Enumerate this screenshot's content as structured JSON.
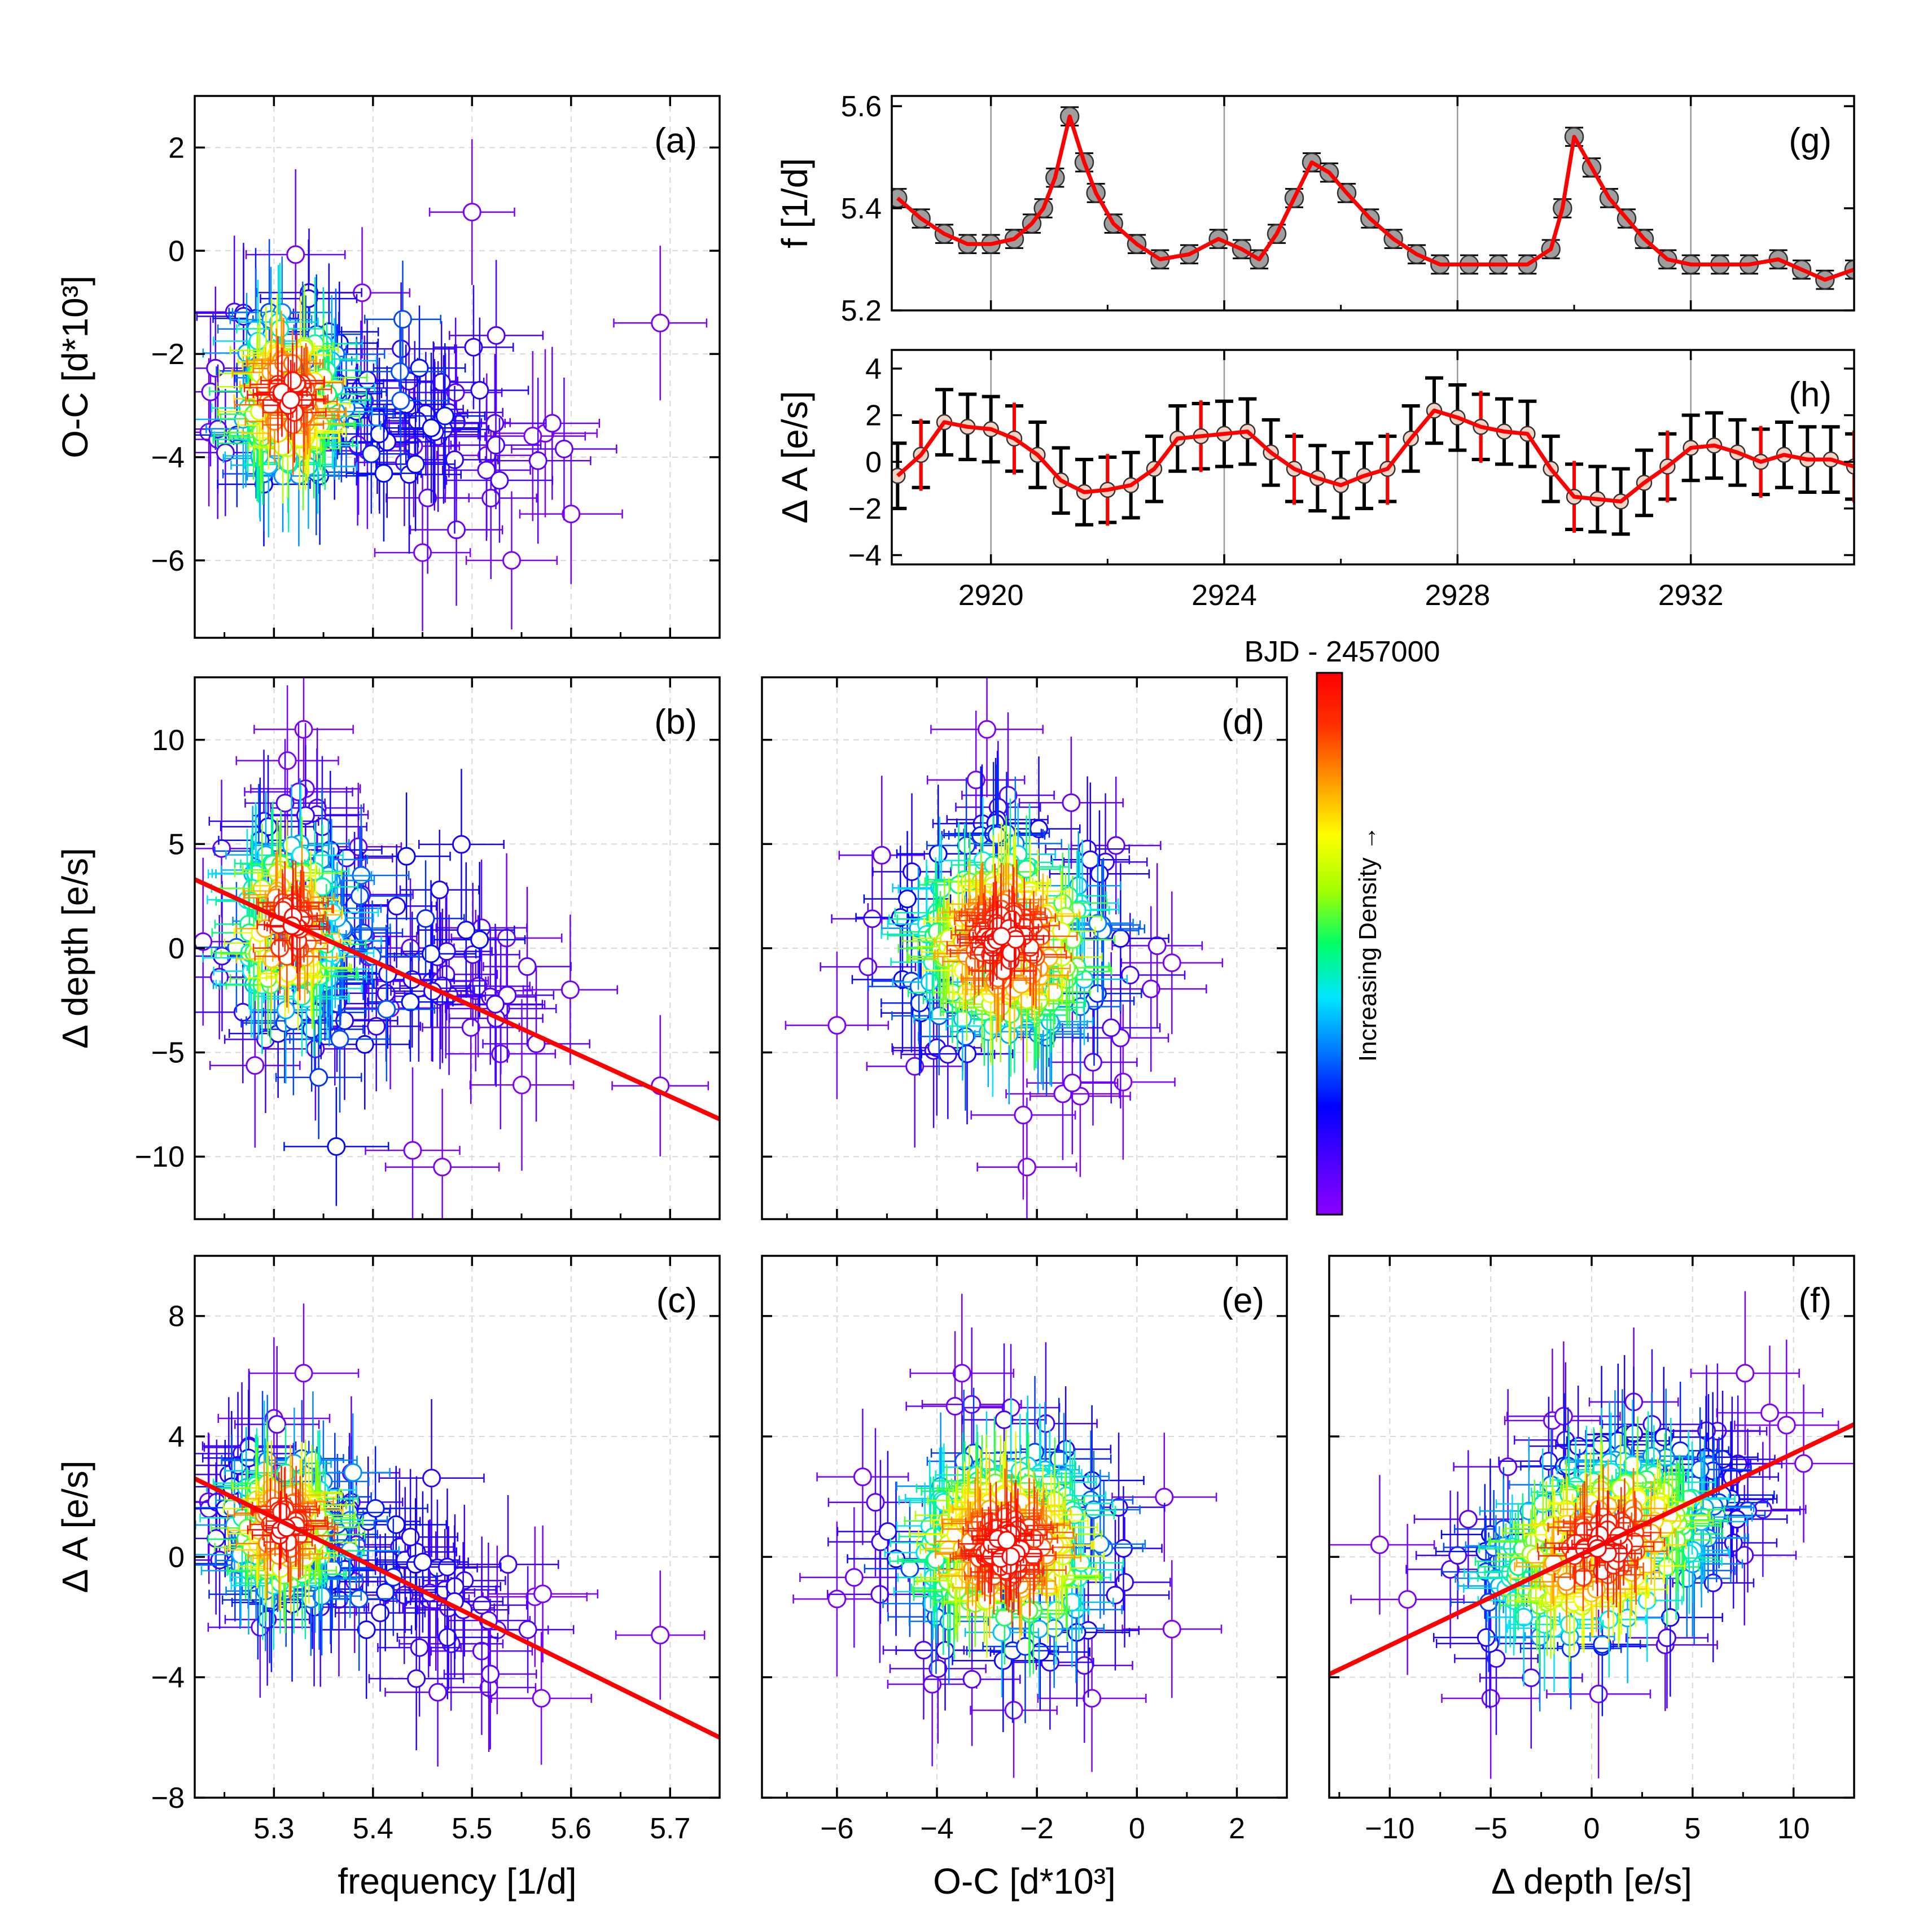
{
  "figure": {
    "colorbar": {
      "title": "BJD - 2457000",
      "label": "Increasing Density →",
      "colors": [
        "#8b00ff",
        "#4b00ff",
        "#0000ff",
        "#0077ff",
        "#00e5ff",
        "#00ff66",
        "#a6ff00",
        "#ffff00",
        "#ff9900",
        "#ff3300",
        "#ff0000"
      ]
    },
    "fit_color": "#ff0000",
    "marker_fill": "#ffffff"
  },
  "chart_data": [
    {
      "id": "a",
      "type": "scatter",
      "panel_label": "(a)",
      "xlabel": "",
      "ylabel": "O-C [d*10³]",
      "xlim": [
        5.22,
        5.75
      ],
      "ylim": [
        -7.5,
        3
      ],
      "xticks": [
        5.3,
        5.4,
        5.5,
        5.6,
        5.7
      ],
      "yticks": [
        -6,
        -4,
        -2,
        0,
        2
      ],
      "show_xticklabels": false,
      "cloud": {
        "cx": 5.315,
        "cy": -2.8,
        "sx": 0.032,
        "sy": 1.0,
        "n": 130,
        "seed": 11,
        "tail": {
          "dx": 0.22,
          "dy": -0.8,
          "n": 70
        }
      },
      "outliers": [
        {
          "x": 5.69,
          "y": -1.4
        },
        {
          "x": 5.5,
          "y": 0.75
        },
        {
          "x": 5.54,
          "y": -6.0
        },
        {
          "x": 5.6,
          "y": -5.1
        },
        {
          "x": 5.45,
          "y": -5.85
        }
      ]
    },
    {
      "id": "b",
      "type": "scatter",
      "panel_label": "(b)",
      "xlabel": "",
      "ylabel": "Δ depth [e/s]",
      "xlim": [
        5.22,
        5.75
      ],
      "ylim": [
        -13,
        13
      ],
      "xticks": [
        5.3,
        5.4,
        5.5,
        5.6,
        5.7
      ],
      "yticks": [
        -10,
        -5,
        0,
        5,
        10
      ],
      "show_xticklabels": false,
      "fit": {
        "x": [
          5.22,
          5.75
        ],
        "y": [
          3.3,
          -8.2
        ]
      },
      "cloud": {
        "cx": 5.315,
        "cy": 1.0,
        "sx": 0.032,
        "sy": 2.6,
        "n": 130,
        "seed": 23,
        "tail": {
          "dx": 0.22,
          "dy": -4.5,
          "n": 70
        }
      },
      "outliers": [
        {
          "x": 5.69,
          "y": -6.6
        },
        {
          "x": 5.33,
          "y": 10.5
        },
        {
          "x": 5.47,
          "y": -10.5
        },
        {
          "x": 5.44,
          "y": -9.7
        }
      ]
    },
    {
      "id": "c",
      "type": "scatter",
      "panel_label": "(c)",
      "xlabel": "frequency [1/d]",
      "ylabel": "Δ A [e/s]",
      "xlim": [
        5.22,
        5.75
      ],
      "ylim": [
        -8,
        10
      ],
      "xticks": [
        5.3,
        5.4,
        5.5,
        5.6,
        5.7
      ],
      "yticks": [
        -8,
        -4,
        0,
        4,
        8
      ],
      "xtick_labels": [
        "5.3",
        "5.4",
        "5.5",
        "5.6",
        "5.7"
      ],
      "fit": {
        "x": [
          5.22,
          5.75
        ],
        "y": [
          2.6,
          -6.0
        ]
      },
      "cloud": {
        "cx": 5.31,
        "cy": 1.0,
        "sx": 0.032,
        "sy": 1.4,
        "n": 130,
        "seed": 37,
        "tail": {
          "dx": 0.22,
          "dy": -3.8,
          "n": 70
        }
      },
      "outliers": [
        {
          "x": 5.69,
          "y": -2.6
        },
        {
          "x": 5.33,
          "y": 6.1
        },
        {
          "x": 5.3,
          "y": 4.6
        },
        {
          "x": 5.57,
          "y": -4.7
        }
      ]
    },
    {
      "id": "d",
      "type": "scatter",
      "panel_label": "(d)",
      "xlabel": "",
      "ylabel": "",
      "xlim": [
        -7.5,
        3
      ],
      "ylim": [
        -13,
        13
      ],
      "xticks": [
        -6,
        -4,
        -2,
        0,
        2
      ],
      "yticks": [
        -10,
        -5,
        0,
        5,
        10
      ],
      "show_xticklabels": false,
      "show_yticklabels": false,
      "cloud": {
        "cx": -2.6,
        "cy": 0.3,
        "sx": 1.15,
        "sy": 2.9,
        "n": 220,
        "seed": 41
      },
      "outliers": [
        {
          "x": -3.0,
          "y": 10.5
        },
        {
          "x": -2.2,
          "y": -10.5
        },
        {
          "x": -6.0,
          "y": -3.7
        },
        {
          "x": 0.7,
          "y": -0.7
        }
      ]
    },
    {
      "id": "e",
      "type": "scatter",
      "panel_label": "(e)",
      "xlabel": "O-C [d*10³]",
      "ylabel": "",
      "xlim": [
        -7.5,
        3
      ],
      "ylim": [
        -8,
        10
      ],
      "xticks": [
        -6,
        -4,
        -2,
        0,
        2
      ],
      "yticks": [
        -8,
        -4,
        0,
        4,
        8
      ],
      "xtick_labels": [
        "−6",
        "−4",
        "−2",
        "0",
        "2"
      ],
      "show_yticklabels": false,
      "cloud": {
        "cx": -2.6,
        "cy": 0.3,
        "sx": 1.15,
        "sy": 1.9,
        "n": 220,
        "seed": 53
      },
      "outliers": [
        {
          "x": -3.5,
          "y": 6.1
        },
        {
          "x": -6.0,
          "y": -1.4
        },
        {
          "x": 0.7,
          "y": -2.4
        },
        {
          "x": -0.9,
          "y": -4.7
        }
      ]
    },
    {
      "id": "f",
      "type": "scatter",
      "panel_label": "(f)",
      "xlabel": "Δ depth [e/s]",
      "ylabel": "",
      "xlim": [
        -13,
        13
      ],
      "ylim": [
        -8,
        10
      ],
      "xticks": [
        -10,
        -5,
        0,
        5,
        10
      ],
      "yticks": [
        -8,
        -4,
        0,
        4,
        8
      ],
      "xtick_labels": [
        "−10",
        "−5",
        "0",
        "5",
        "10"
      ],
      "show_yticklabels": false,
      "fit": {
        "x": [
          -13,
          13
        ],
        "y": [
          -3.9,
          4.4
        ]
      },
      "cloud": {
        "cx": 0.5,
        "cy": 0.3,
        "sx": 3.3,
        "sy": 1.9,
        "n": 220,
        "seed": 67,
        "corr": 0.35
      },
      "outliers": [
        {
          "x": 10.5,
          "y": 3.1
        },
        {
          "x": -10.5,
          "y": 0.4
        },
        {
          "x": 7.6,
          "y": 6.1
        },
        {
          "x": -5.0,
          "y": -4.7
        }
      ]
    },
    {
      "id": "g",
      "type": "line",
      "panel_label": "(g)",
      "xlabel": "",
      "ylabel": "f [1/d]",
      "xlim": [
        2918.3,
        2934.8
      ],
      "ylim": [
        5.2,
        5.62
      ],
      "xticks": [
        2920,
        2924,
        2928,
        2932
      ],
      "yticks": [
        5.2,
        5.4,
        5.6
      ],
      "ytick_labels": [
        "5.2",
        "5.4",
        "5.6"
      ],
      "show_xticklabels": false,
      "x": [
        2918.4,
        2918.8,
        2919.2,
        2919.6,
        2920.0,
        2920.4,
        2920.7,
        2920.9,
        2921.1,
        2921.35,
        2921.6,
        2921.8,
        2922.1,
        2922.5,
        2922.9,
        2923.4,
        2923.9,
        2924.3,
        2924.6,
        2924.9,
        2925.2,
        2925.5,
        2925.8,
        2926.1,
        2926.5,
        2926.9,
        2927.3,
        2927.7,
        2928.2,
        2928.7,
        2929.2,
        2929.6,
        2929.8,
        2930.0,
        2930.3,
        2930.6,
        2930.9,
        2931.2,
        2931.6,
        2932.0,
        2932.5,
        2933.0,
        2933.5,
        2933.9,
        2934.3,
        2934.8
      ],
      "y": [
        5.42,
        5.38,
        5.35,
        5.33,
        5.33,
        5.34,
        5.37,
        5.4,
        5.46,
        5.58,
        5.49,
        5.43,
        5.37,
        5.33,
        5.3,
        5.31,
        5.34,
        5.32,
        5.3,
        5.35,
        5.42,
        5.49,
        5.47,
        5.43,
        5.38,
        5.34,
        5.31,
        5.29,
        5.29,
        5.29,
        5.29,
        5.32,
        5.4,
        5.54,
        5.48,
        5.42,
        5.38,
        5.34,
        5.3,
        5.29,
        5.29,
        5.29,
        5.3,
        5.28,
        5.26,
        5.28
      ],
      "err": 0.018
    },
    {
      "id": "h",
      "type": "line",
      "panel_label": "(h)",
      "xlabel": "BJD - 2457000",
      "ylabel": "Δ A [e/s]",
      "xlim": [
        2918.3,
        2934.8
      ],
      "ylim": [
        -4.4,
        4.8
      ],
      "xticks": [
        2920,
        2924,
        2928,
        2932
      ],
      "yticks": [
        -4,
        -2,
        0,
        2,
        4
      ],
      "xtick_labels": [
        "2920",
        "2924",
        "2928",
        "2932"
      ],
      "ytick_labels": [
        "−4",
        "−2",
        "0",
        "2",
        "4"
      ],
      "x": [
        2918.4,
        2918.8,
        2919.2,
        2919.6,
        2920.0,
        2920.4,
        2920.8,
        2921.2,
        2921.6,
        2922.0,
        2922.4,
        2922.8,
        2923.2,
        2923.6,
        2924.0,
        2924.4,
        2924.8,
        2925.2,
        2925.6,
        2926.0,
        2926.4,
        2926.8,
        2927.2,
        2927.6,
        2928.0,
        2928.4,
        2928.8,
        2929.2,
        2929.6,
        2930.0,
        2930.4,
        2930.8,
        2931.2,
        2931.6,
        2932.0,
        2932.4,
        2932.8,
        2933.2,
        2933.6,
        2934.0,
        2934.4,
        2934.8
      ],
      "y": [
        -0.6,
        0.3,
        1.7,
        1.5,
        1.4,
        1.0,
        0.3,
        -0.8,
        -1.3,
        -1.2,
        -1.0,
        -0.3,
        1.0,
        1.1,
        1.2,
        1.3,
        0.4,
        -0.3,
        -0.7,
        -1.0,
        -0.6,
        -0.3,
        1.0,
        2.2,
        1.9,
        1.5,
        1.3,
        1.2,
        -0.3,
        -1.5,
        -1.6,
        -1.7,
        -0.9,
        -0.2,
        0.6,
        0.7,
        0.4,
        0.0,
        0.3,
        0.1,
        0.1,
        -0.2
      ],
      "err": 1.4
    }
  ]
}
